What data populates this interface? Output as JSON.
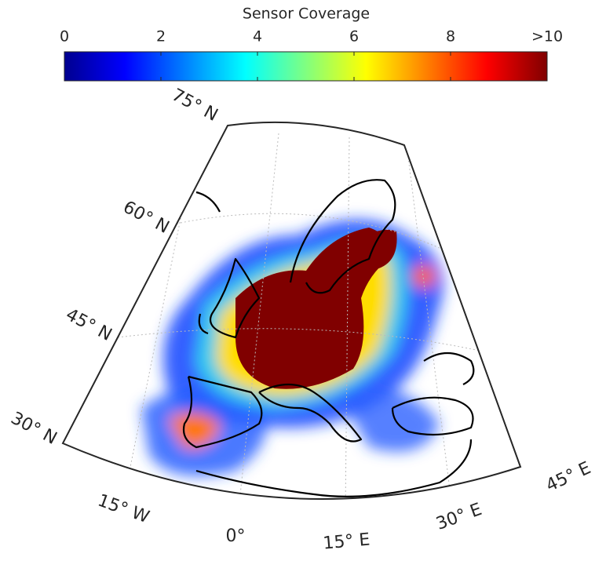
{
  "colorbar": {
    "title": "Sensor Coverage",
    "clim": [
      0,
      10
    ],
    "ticks": [
      0,
      2,
      4,
      6,
      8,
      {
        "value": 10,
        "label": ">10"
      }
    ],
    "colormap": "jet"
  },
  "map": {
    "lat_labels": [
      "30° N",
      "45° N",
      "60° N",
      "75° N"
    ],
    "lon_labels": [
      "15° W",
      "0°",
      "15° E",
      "30° E",
      "45° E"
    ]
  }
}
